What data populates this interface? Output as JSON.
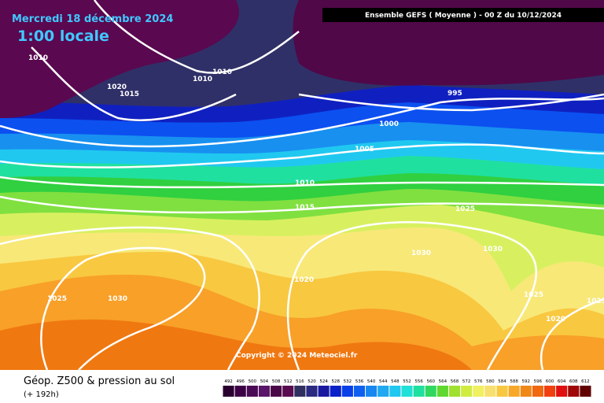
{
  "header": {
    "date": "Mercredi 18 décembre 2024",
    "time": "1:00 locale",
    "run": "Ensemble GEFS  ( Moyenne )  - 00 Z du 10/12/2024"
  },
  "isobar_labels": [
    "1010",
    "1020",
    "1015",
    "1010",
    "1010",
    "995",
    "1000",
    "1005",
    "1010",
    "1015",
    "1025",
    "1030",
    "1030",
    "1020",
    "1025",
    "1030",
    "1025",
    "1025",
    "1020"
  ],
  "copyright": "Copyright © 2024 Meteociel.fr",
  "footer": {
    "title": "Géop. Z500 & pression au sol",
    "lead": "(+ 192h)"
  },
  "legend": {
    "labels": [
      "492",
      "496",
      "500",
      "504",
      "508",
      "512",
      "516",
      "520",
      "524",
      "528",
      "532",
      "536",
      "540",
      "544",
      "548",
      "552",
      "556",
      "560",
      "564",
      "568",
      "572",
      "576",
      "580",
      "584",
      "588",
      "592",
      "596",
      "600",
      "604",
      "608",
      "612"
    ],
    "colors": [
      "#2a0030",
      "#3c0045",
      "#4a0a55",
      "#5a1468",
      "#4a0848",
      "#5a0c50",
      "#303060",
      "#2a2a80",
      "#1a1aa0",
      "#0a20c8",
      "#0a40e8",
      "#1060f0",
      "#1888f0",
      "#20a8f0",
      "#20c8f0",
      "#20e0d8",
      "#20e0a0",
      "#30d860",
      "#60d830",
      "#a0e030",
      "#d0ec40",
      "#f0f060",
      "#f8e070",
      "#f8c840",
      "#f8a828",
      "#f08818",
      "#f06810",
      "#f04010",
      "#e01010",
      "#a00808",
      "#600000"
    ]
  }
}
